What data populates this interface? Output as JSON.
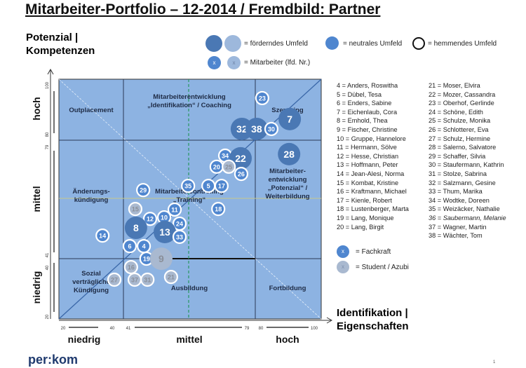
{
  "title": "Mitarbeiter-Portfolio – 12-2014 / Fremdbild: Partner",
  "legend": {
    "foerdernd": "= förderndes  Umfeld",
    "neutral": "= neutrales  Umfeld",
    "hemmend": "= hemmendes  Umfeld",
    "mitarbeiter": "= Mitarbeiter  (lfd. Nr.)",
    "x_mark": "x",
    "fachkraft": "= Fachkraft",
    "student": "= Student / Azubi"
  },
  "colors": {
    "plot_bg": "#8db3e2",
    "foerdernd_dark": "#4a78b4",
    "foerdernd_light": "#9db8dc",
    "neutral": "#4f86cf",
    "student": "#a9b9d0",
    "hemmend_ring": "#ffffff"
  },
  "logo": "per:kom",
  "page_number": "1",
  "chart_data": {
    "type": "scatter",
    "ylabel": "Potenzial | Kompetenzen",
    "xlabel": "Identifikation | Eigenschaften",
    "xlim": [
      20,
      100
    ],
    "ylim": [
      20,
      100
    ],
    "x_ticks": [
      "20",
      "40",
      "41",
      "79",
      "80",
      "100"
    ],
    "y_ticks": [
      "20",
      "40",
      "41",
      "79",
      "80",
      "100"
    ],
    "x_bands": [
      "niedrig",
      "mittel",
      "hoch"
    ],
    "y_bands": [
      "niedrig",
      "mittel",
      "hoch"
    ],
    "fields": [
      {
        "label": "Outplacement"
      },
      {
        "label": "Mitarbeiterentwicklung „Identifikation“ / Coaching"
      },
      {
        "label": "Szenaring"
      },
      {
        "label": "Änderungs-kündigung"
      },
      {
        "label": "Mitarbeitercontrolling „Training“"
      },
      {
        "label": "Mitarbeiter-entwicklung „Potenzial“ / Weiterbildung"
      },
      {
        "label": "Sozial verträgliche Kündigung"
      },
      {
        "label": "Ausbildung"
      },
      {
        "label": "Fortbildung"
      }
    ],
    "points": [
      {
        "id": "23",
        "x": 82.0,
        "y": 93.7,
        "env": "hemmend",
        "role": "fachkraft"
      },
      {
        "id": "7",
        "x": 90.4,
        "y": 86.7,
        "env": "foerdernd",
        "role": "fachkraft"
      },
      {
        "id": "32",
        "x": 75.8,
        "y": 83.4,
        "env": "foerdernd",
        "role": "fachkraft"
      },
      {
        "id": "38",
        "x": 80.3,
        "y": 83.4,
        "env": "foerdernd",
        "role": "fachkraft"
      },
      {
        "id": "30",
        "x": 84.8,
        "y": 83.4,
        "env": "hemmend",
        "role": "fachkraft"
      },
      {
        "id": "28",
        "x": 90.2,
        "y": 75.0,
        "env": "foerdernd",
        "role": "fachkraft"
      },
      {
        "id": "34",
        "x": 70.7,
        "y": 74.5,
        "env": "hemmend",
        "role": "fachkraft"
      },
      {
        "id": "22",
        "x": 75.4,
        "y": 73.6,
        "env": "foerdernd",
        "role": "fachkraft"
      },
      {
        "id": "20",
        "x": 68.1,
        "y": 70.8,
        "env": "hemmend",
        "role": "fachkraft"
      },
      {
        "id": "25",
        "x": 71.8,
        "y": 70.8,
        "env": "hemmend",
        "role": "student"
      },
      {
        "id": "26",
        "x": 75.6,
        "y": 68.4,
        "env": "hemmend",
        "role": "fachkraft"
      },
      {
        "id": "35",
        "x": 59.4,
        "y": 64.4,
        "env": "hemmend",
        "role": "fachkraft"
      },
      {
        "id": "5",
        "x": 65.6,
        "y": 64.4,
        "env": "hemmend",
        "role": "fachkraft"
      },
      {
        "id": "17",
        "x": 69.6,
        "y": 64.4,
        "env": "hemmend",
        "role": "fachkraft"
      },
      {
        "id": "18",
        "x": 68.6,
        "y": 56.7,
        "env": "hemmend",
        "role": "fachkraft"
      },
      {
        "id": "29",
        "x": 45.7,
        "y": 63.0,
        "env": "hemmend",
        "role": "fachkraft"
      },
      {
        "id": "15",
        "x": 43.3,
        "y": 56.7,
        "env": "hemmend",
        "role": "student"
      },
      {
        "id": "12",
        "x": 47.8,
        "y": 53.4,
        "env": "hemmend",
        "role": "fachkraft"
      },
      {
        "id": "10",
        "x": 52.1,
        "y": 53.9,
        "env": "hemmend",
        "role": "fachkraft"
      },
      {
        "id": "11",
        "x": 55.3,
        "y": 56.5,
        "env": "hemmend",
        "role": "fachkraft"
      },
      {
        "id": "24",
        "x": 56.8,
        "y": 51.8,
        "env": "hemmend",
        "role": "fachkraft"
      },
      {
        "id": "8",
        "x": 43.5,
        "y": 50.4,
        "env": "foerdernd",
        "role": "fachkraft"
      },
      {
        "id": "13",
        "x": 52.3,
        "y": 49.0,
        "env": "foerdernd",
        "role": "fachkraft"
      },
      {
        "id": "33",
        "x": 56.8,
        "y": 47.4,
        "env": "hemmend",
        "role": "fachkraft"
      },
      {
        "id": "14",
        "x": 33.3,
        "y": 47.8,
        "env": "hemmend",
        "role": "fachkraft"
      },
      {
        "id": "6",
        "x": 41.6,
        "y": 44.3,
        "env": "hemmend",
        "role": "fachkraft"
      },
      {
        "id": "4",
        "x": 45.9,
        "y": 44.3,
        "env": "hemmend",
        "role": "fachkraft"
      },
      {
        "id": "19",
        "x": 46.7,
        "y": 40.1,
        "env": "hemmend",
        "role": "fachkraft"
      },
      {
        "id": "9",
        "x": 51.2,
        "y": 40.1,
        "env": "foerdernd",
        "role": "student"
      },
      {
        "id": "16",
        "x": 42.0,
        "y": 37.3,
        "env": "hemmend",
        "role": "student"
      },
      {
        "id": "27",
        "x": 36.9,
        "y": 33.1,
        "env": "hemmend",
        "role": "student"
      },
      {
        "id": "37",
        "x": 43.1,
        "y": 33.1,
        "env": "hemmend",
        "role": "student"
      },
      {
        "id": "31",
        "x": 47.0,
        "y": 33.1,
        "env": "hemmend",
        "role": "student"
      },
      {
        "id": "21",
        "x": 54.2,
        "y": 34.0,
        "env": "hemmend",
        "role": "student"
      }
    ]
  },
  "names_col1": [
    "4  = Anders, Roswitha",
    "5  = Dübel, Tesa",
    "6  = Enders, Sabine",
    "7  = Eichenlaub, Cora",
    "8  = Emhold, Thea",
    "9  = Fischer, Christine",
    "10 = Gruppe, Hannelore",
    "11 = Hermann, Sölve",
    "12 = Hesse, Christian",
    "13 = Hoffmann, Peter",
    "14 = Jean-Alesi, Norma",
    "15 = Kombat, Kristine",
    "16 = Kraftmann, Michael",
    "17 = Kienle, Robert",
    "18 = Lustenberger,  Marta",
    "19 = Lang, Monique",
    "20 = Lang, Birgit"
  ],
  "names_col2": [
    "21 = Moser, Elvira",
    "22 = Mozer, Cassandra",
    "23 = Oberhof, Gerlinde",
    "24 = Schöne, Edith",
    "25 = Schulze, Monika",
    "26 = Schlotterer, Eva",
    "27 = Schulz, Hermine",
    "28 = Salerno, Salvatore",
    "29 = Schaffer, Silvia",
    "30 = Staufermann, Kathrin",
    "31 = Stolze, Sabrina",
    "32 = Salzmann, Gesine",
    "33 = Thum, Marika",
    "34 = Wodtke, Doreen",
    "35 = Weizäcker, Nathalie",
    "36 = Saubermann, Melanie",
    "37 = Wagner, Martin",
    "38 = Wächter, Tom"
  ]
}
